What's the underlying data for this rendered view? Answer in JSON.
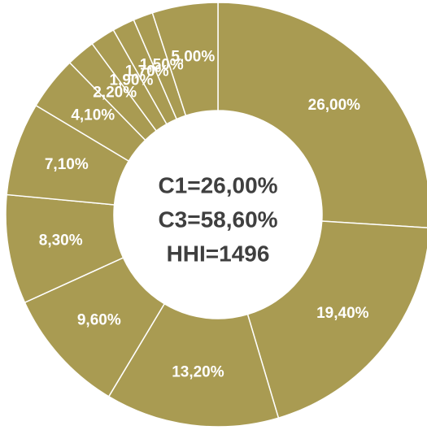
{
  "chart_data": {
    "type": "donut",
    "categories": [
      null,
      null,
      null,
      null,
      null,
      null,
      null,
      null,
      null,
      null,
      null,
      null
    ],
    "values": [
      26.0,
      19.4,
      13.2,
      9.6,
      8.3,
      7.1,
      4.1,
      2.2,
      1.9,
      1.7,
      1.5,
      5.0
    ],
    "value_labels": [
      "26,00%",
      "19,40%",
      "13,20%",
      "9,60%",
      "8,30%",
      "7,10%",
      "4,10%",
      "2,20%",
      "1,90%",
      "1,70%",
      "1,50%",
      "5,00%"
    ],
    "color": "#a99b52",
    "annotations": [
      "C1=26,00%",
      "C3=58,60%",
      "HHI=1496"
    ]
  }
}
